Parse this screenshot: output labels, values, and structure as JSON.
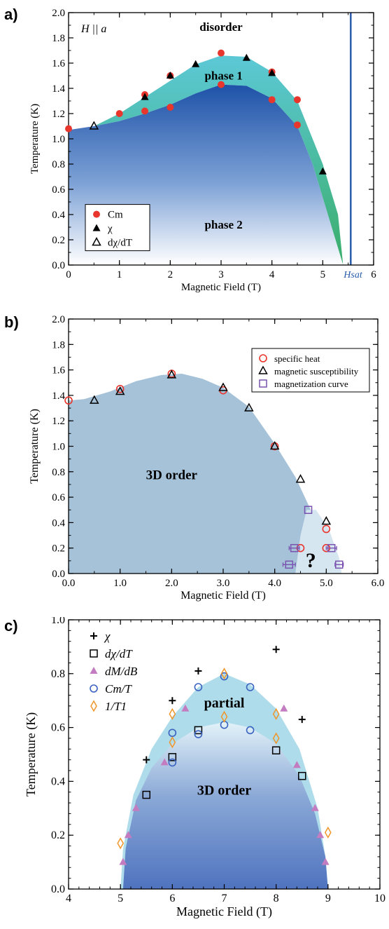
{
  "panel_labels": [
    "a)",
    "b)",
    "c)"
  ],
  "chart_data": [
    {
      "type": "scatter",
      "xlabel": "Magnetic Field  (T)",
      "ylabel": "Temperature (K)",
      "xlim": [
        0,
        6
      ],
      "ylim": [
        0,
        2.0
      ],
      "xticks": [
        "0",
        "1",
        "2",
        "3",
        "4",
        "5",
        "6"
      ],
      "yticks": [
        "0.0",
        "0.2",
        "0.4",
        "0.6",
        "0.8",
        "1.0",
        "1.2",
        "1.4",
        "1.6",
        "1.8",
        "2.0"
      ],
      "annotations": {
        "field_dir": "H || a",
        "disorder": "disorder",
        "phase1": "phase 1",
        "phase2": "phase 2",
        "hsat_label": "Hsat"
      },
      "hsat_value": 5.55,
      "legend_position": "bottom-left",
      "colors": {
        "phase1": "#3fb8b0",
        "phase2": "#2057a8",
        "hsat_line": "#2a5caa",
        "cm": "#e8362d"
      },
      "series": [
        {
          "name": "Cm",
          "marker": "filled-circle",
          "color": "#e8362d",
          "points": [
            [
              0,
              1.08
            ],
            [
              1,
              1.2
            ],
            [
              1.5,
              1.35
            ],
            [
              1.5,
              1.22
            ],
            [
              2,
              1.5
            ],
            [
              2,
              1.25
            ],
            [
              3,
              1.68
            ],
            [
              3,
              1.43
            ],
            [
              4,
              1.53
            ],
            [
              4,
              1.31
            ],
            [
              4.5,
              1.31
            ],
            [
              4.5,
              1.11
            ]
          ]
        },
        {
          "name": "χ",
          "marker": "filled-triangle",
          "color": "#000000",
          "points": [
            [
              1.5,
              1.33
            ],
            [
              2,
              1.5
            ],
            [
              2.5,
              1.59
            ],
            [
              3.5,
              1.64
            ],
            [
              4,
              1.52
            ],
            [
              5,
              0.74
            ]
          ]
        },
        {
          "name": "dχ/dT",
          "marker": "open-triangle",
          "color": "#000000",
          "points": [
            [
              0.5,
              1.1
            ]
          ]
        }
      ]
    },
    {
      "type": "scatter",
      "xlabel": "Magnetic Field (T)",
      "ylabel": "Temperature (K)",
      "xlim": [
        0,
        6
      ],
      "ylim": [
        0,
        2.0
      ],
      "xticks": [
        "0.0",
        "1.0",
        "2.0",
        "3.0",
        "4.0",
        "5.0",
        "6.0"
      ],
      "yticks": [
        "0.0",
        "0.2",
        "0.4",
        "0.6",
        "0.8",
        "1.0",
        "1.2",
        "1.4",
        "1.6",
        "1.8",
        "2.0"
      ],
      "annotations": {
        "order": "3D order",
        "unknown": "?"
      },
      "legend_position": "top-right",
      "colors": {
        "order": "#a6c2d9",
        "unknown": "#d6e6f0"
      },
      "series": [
        {
          "name": "specific heat",
          "marker": "open-circle",
          "color": "#e8362d",
          "points": [
            [
              0,
              1.36
            ],
            [
              1,
              1.45
            ],
            [
              2,
              1.57
            ],
            [
              3,
              1.44
            ],
            [
              4,
              1.0
            ],
            [
              4.5,
              0.2
            ],
            [
              5,
              0.35
            ],
            [
              5,
              0.2
            ]
          ]
        },
        {
          "name": "magnetic susceptibility",
          "marker": "open-triangle",
          "color": "#000000",
          "points": [
            [
              0.5,
              1.36
            ],
            [
              1,
              1.43
            ],
            [
              2,
              1.56
            ],
            [
              3,
              1.46
            ],
            [
              3.5,
              1.3
            ],
            [
              4,
              1.0
            ],
            [
              4.5,
              0.74
            ],
            [
              5,
              0.41
            ]
          ]
        },
        {
          "name": "magnetization curve",
          "marker": "open-square",
          "color": "#7a52b0",
          "points": [
            [
              4.38,
              0.2
            ],
            [
              4.28,
              0.07
            ],
            [
              4.65,
              0.5
            ],
            [
              5.1,
              0.2
            ],
            [
              5.25,
              0.07
            ]
          ],
          "xerr": [
            0.1,
            0.12,
            0,
            0.1,
            0.08
          ]
        }
      ]
    },
    {
      "type": "scatter",
      "xlabel": "Magnetic Field (T)",
      "ylabel": "Temperature (K)",
      "xlim": [
        4,
        10
      ],
      "ylim": [
        0,
        1.0
      ],
      "xticks": [
        "4",
        "5",
        "6",
        "7",
        "8",
        "9",
        "10"
      ],
      "yticks": [
        "0.0",
        "0.2",
        "0.4",
        "0.6",
        "0.8",
        "1.0"
      ],
      "annotations": {
        "partial": "partial",
        "order": "3D order"
      },
      "legend_position": "top-left",
      "colors": {
        "partial": "#aedcea",
        "order": "#5a7ec4"
      },
      "series": [
        {
          "name": "χ",
          "marker": "plus",
          "color": "#000000",
          "points": [
            [
              5.5,
              0.48
            ],
            [
              6,
              0.7
            ],
            [
              6.5,
              0.81
            ],
            [
              8,
              0.89
            ],
            [
              8.5,
              0.63
            ]
          ]
        },
        {
          "name": "dχ/dT",
          "marker": "open-square",
          "color": "#000000",
          "points": [
            [
              5.5,
              0.35
            ],
            [
              6,
              0.49
            ],
            [
              6.5,
              0.59
            ],
            [
              8,
              0.515
            ],
            [
              8.5,
              0.42
            ]
          ]
        },
        {
          "name": "dM/dB",
          "marker": "filled-triangle",
          "color": "#c47cc0",
          "points": [
            [
              5.05,
              0.1
            ],
            [
              5.15,
              0.2
            ],
            [
              5.3,
              0.3
            ],
            [
              5.85,
              0.47
            ],
            [
              6.25,
              0.67
            ],
            [
              8.15,
              0.67
            ],
            [
              8.4,
              0.46
            ],
            [
              8.75,
              0.3
            ],
            [
              8.85,
              0.2
            ],
            [
              8.95,
              0.1
            ]
          ]
        },
        {
          "name": "Cm/T",
          "marker": "open-circle",
          "color": "#3a63c0",
          "points": [
            [
              6,
              0.58
            ],
            [
              6,
              0.47
            ],
            [
              6.5,
              0.75
            ],
            [
              6.5,
              0.575
            ],
            [
              7,
              0.79
            ],
            [
              7,
              0.61
            ],
            [
              7.5,
              0.75
            ],
            [
              7.5,
              0.59
            ]
          ]
        },
        {
          "name": "1/T1",
          "marker": "open-diamond",
          "color": "#f0962a",
          "points": [
            [
              5,
              0.17
            ],
            [
              6,
              0.65
            ],
            [
              6,
              0.545
            ],
            [
              7,
              0.8
            ],
            [
              7,
              0.64
            ],
            [
              8,
              0.65
            ],
            [
              8,
              0.56
            ],
            [
              9,
              0.21
            ]
          ]
        }
      ]
    }
  ]
}
